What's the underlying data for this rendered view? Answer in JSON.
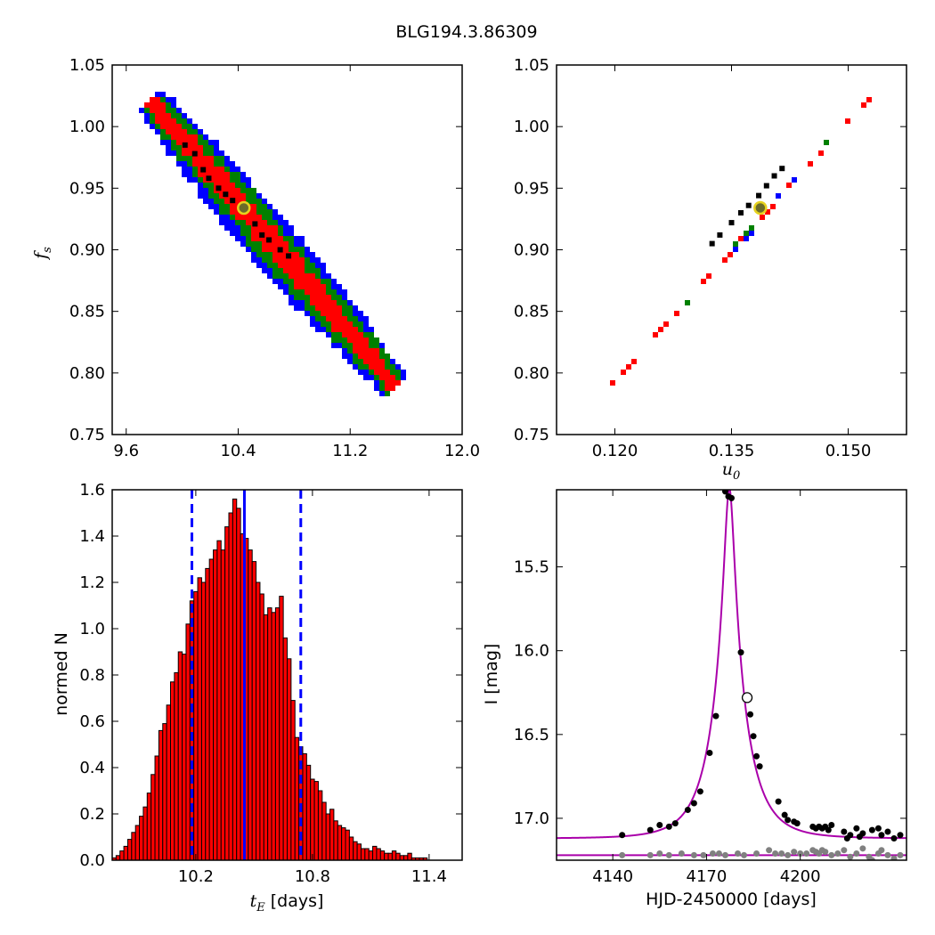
{
  "suptitle": "BLG194.3.86309",
  "chart_data": [
    {
      "type": "heatmap",
      "panel": "top-left",
      "xlabel": "",
      "ylabel": "f_s",
      "ylabel_main": "f",
      "ylabel_sub": "s",
      "xlim": [
        9.5,
        12.0
      ],
      "ylim": [
        0.75,
        1.05
      ],
      "xticks": [
        "9.6",
        "10.4",
        "11.2",
        "12.0"
      ],
      "xtick_values": [
        9.6,
        10.4,
        11.2,
        12.0
      ],
      "yticks": [
        "0.75",
        "0.80",
        "0.85",
        "0.90",
        "0.95",
        "1.00",
        "1.05"
      ],
      "ytick_values": [
        0.75,
        0.8,
        0.85,
        0.9,
        0.95,
        1.0,
        1.05
      ],
      "band": {
        "p0": [
          9.78,
          1.02
        ],
        "p1": [
          11.52,
          0.79
        ],
        "widths": {
          "blue": 0.041,
          "green": 0.03,
          "red": 0.017
        }
      },
      "colors": {
        "blue": "#0000ff",
        "green": "#008000",
        "red": "#ff0000",
        "black": "#000000"
      },
      "best_fit": {
        "x": 10.44,
        "y": 0.934
      },
      "black_points": [
        [
          10.02,
          0.985
        ],
        [
          10.09,
          0.978
        ],
        [
          10.15,
          0.965
        ],
        [
          10.19,
          0.958
        ],
        [
          10.26,
          0.95
        ],
        [
          10.31,
          0.945
        ],
        [
          10.36,
          0.94
        ],
        [
          10.43,
          0.933
        ],
        [
          10.52,
          0.921
        ],
        [
          10.57,
          0.912
        ],
        [
          10.62,
          0.908
        ],
        [
          10.7,
          0.9
        ],
        [
          10.76,
          0.895
        ]
      ]
    },
    {
      "type": "heatmap",
      "panel": "top-right",
      "xlabel": "u_0",
      "xlabel_main": "u",
      "xlabel_sub": "0",
      "ylabel": "",
      "xlim": [
        0.1125,
        0.1575
      ],
      "ylim": [
        0.75,
        1.05
      ],
      "xticks": [
        "0.120",
        "0.135",
        "0.150"
      ],
      "xtick_values": [
        0.12,
        0.135,
        0.15
      ],
      "yticks": [
        "0.75",
        "0.80",
        "0.85",
        "0.90",
        "0.95",
        "1.00",
        "1.05"
      ],
      "ytick_values": [
        0.75,
        0.8,
        0.85,
        0.9,
        0.95,
        1.0,
        1.05
      ],
      "band": {
        "p0": [
          0.1195,
          0.79
        ],
        "p1": [
          0.1525,
          1.022
        ],
        "widths": {
          "blue": 0.0019,
          "green": 0.0013,
          "red": 0.0007
        }
      },
      "colors": {
        "blue": "#0000ff",
        "green": "#008000",
        "red": "#ff0000",
        "black": "#000000"
      },
      "best_fit": {
        "x": 0.1387,
        "y": 0.934
      },
      "black_points": [
        [
          0.1325,
          0.905
        ],
        [
          0.1335,
          0.912
        ],
        [
          0.135,
          0.922
        ],
        [
          0.1362,
          0.93
        ],
        [
          0.1372,
          0.936
        ],
        [
          0.1385,
          0.944
        ],
        [
          0.1395,
          0.952
        ],
        [
          0.1405,
          0.96
        ],
        [
          0.1415,
          0.966
        ]
      ]
    },
    {
      "type": "bar",
      "panel": "bottom-left",
      "xlabel_main": "t",
      "xlabel_sub": "E",
      "xlabel_rest": " [days]",
      "ylabel": "normed N",
      "xlim": [
        9.77,
        11.57
      ],
      "ylim": [
        0.0,
        1.6
      ],
      "xticks": [
        "10.2",
        "10.8",
        "11.4"
      ],
      "xtick_values": [
        10.2,
        10.8,
        11.4
      ],
      "yticks": [
        "0.0",
        "0.2",
        "0.4",
        "0.6",
        "0.8",
        "1.0",
        "1.2",
        "1.4",
        "1.6"
      ],
      "ytick_values": [
        0.0,
        0.2,
        0.4,
        0.6,
        0.8,
        1.0,
        1.2,
        1.4,
        1.6
      ],
      "bin_start": 9.77,
      "bin_width": 0.02,
      "values": [
        0.01,
        0.02,
        0.04,
        0.06,
        0.09,
        0.12,
        0.15,
        0.19,
        0.23,
        0.29,
        0.37,
        0.45,
        0.56,
        0.59,
        0.67,
        0.77,
        0.81,
        0.9,
        0.89,
        1.02,
        1.12,
        1.16,
        1.22,
        1.2,
        1.26,
        1.3,
        1.34,
        1.38,
        1.34,
        1.44,
        1.5,
        1.56,
        1.52,
        1.41,
        1.39,
        1.34,
        1.29,
        1.2,
        1.15,
        1.06,
        1.09,
        1.07,
        1.09,
        1.14,
        0.96,
        0.87,
        0.69,
        0.53,
        0.49,
        0.46,
        0.41,
        0.35,
        0.34,
        0.3,
        0.25,
        0.2,
        0.22,
        0.17,
        0.15,
        0.14,
        0.13,
        0.1,
        0.08,
        0.07,
        0.05,
        0.05,
        0.04,
        0.06,
        0.05,
        0.04,
        0.03,
        0.03,
        0.04,
        0.03,
        0.02,
        0.02,
        0.03,
        0.01,
        0.01,
        0.01,
        0.01
      ],
      "bar_color": "#ff0000",
      "median": 10.45,
      "bounds": [
        10.18,
        10.74
      ],
      "line_color": "#0000ff"
    },
    {
      "type": "scatter",
      "panel": "bottom-right",
      "xlabel": "HJD-2450000 [days]",
      "ylabel": "I [mag]",
      "xlim": [
        4122,
        4234
      ],
      "ylim": [
        17.25,
        15.04
      ],
      "y_inverted": true,
      "xticks": [
        "4140",
        "4170",
        "4200"
      ],
      "xtick_values": [
        4140,
        4170,
        4200
      ],
      "yticks": [
        "15.5",
        "16.0",
        "16.5",
        "17.0"
      ],
      "ytick_values": [
        15.5,
        16.0,
        16.5,
        17.0
      ],
      "model": {
        "t0": 4177.3,
        "tE": 10.45,
        "u0": 0.1387,
        "fs": 0.934,
        "base": 17.12,
        "color": "#aa00aa",
        "baseline_mag": 17.22
      },
      "series": [
        {
          "name": "",
          "color": "#000000",
          "points": [
            [
              4143,
              17.1
            ],
            [
              4152,
              17.07
            ],
            [
              4155,
              17.04
            ],
            [
              4158,
              17.05
            ],
            [
              4160,
              17.03
            ],
            [
              4164,
              16.95
            ],
            [
              4166,
              16.91
            ],
            [
              4168,
              16.84
            ],
            [
              4171,
              16.61
            ],
            [
              4173,
              16.39
            ],
            [
              4176,
              15.05
            ],
            [
              4177,
              15.08
            ],
            [
              4178,
              15.09
            ],
            [
              4181,
              16.01
            ],
            [
              4184,
              16.38
            ],
            [
              4185,
              16.51
            ],
            [
              4186,
              16.63
            ],
            [
              4187,
              16.69
            ],
            [
              4193,
              16.9
            ],
            [
              4195,
              16.98
            ],
            [
              4196,
              17.01
            ],
            [
              4198,
              17.02
            ],
            [
              4199,
              17.03
            ],
            [
              4204,
              17.05
            ],
            [
              4205,
              17.06
            ],
            [
              4206,
              17.05
            ],
            [
              4207,
              17.06
            ],
            [
              4208,
              17.05
            ],
            [
              4209,
              17.07
            ],
            [
              4210,
              17.04
            ],
            [
              4214,
              17.08
            ],
            [
              4215,
              17.12
            ],
            [
              4216,
              17.1
            ],
            [
              4218,
              17.06
            ],
            [
              4219,
              17.11
            ],
            [
              4220,
              17.09
            ],
            [
              4223,
              17.07
            ],
            [
              4225,
              17.06
            ],
            [
              4226,
              17.1
            ],
            [
              4228,
              17.08
            ],
            [
              4230,
              17.12
            ],
            [
              4232,
              17.1
            ]
          ]
        },
        {
          "name": "",
          "color": "#808080",
          "points": [
            [
              4143,
              17.22
            ],
            [
              4152,
              17.22
            ],
            [
              4155,
              17.21
            ],
            [
              4158,
              17.22
            ],
            [
              4162,
              17.21
            ],
            [
              4166,
              17.22
            ],
            [
              4169,
              17.22
            ],
            [
              4172,
              17.21
            ],
            [
              4174,
              17.21
            ],
            [
              4176,
              17.22
            ],
            [
              4180,
              17.21
            ],
            [
              4182,
              17.22
            ],
            [
              4186,
              17.21
            ],
            [
              4190,
              17.19
            ],
            [
              4192,
              17.21
            ],
            [
              4194,
              17.21
            ],
            [
              4196,
              17.22
            ],
            [
              4198,
              17.2
            ],
            [
              4200,
              17.21
            ],
            [
              4202,
              17.21
            ],
            [
              4204,
              17.19
            ],
            [
              4205,
              17.2
            ],
            [
              4206,
              17.21
            ],
            [
              4207,
              17.19
            ],
            [
              4208,
              17.2
            ],
            [
              4210,
              17.22
            ],
            [
              4212,
              17.21
            ],
            [
              4214,
              17.19
            ],
            [
              4216,
              17.23
            ],
            [
              4218,
              17.21
            ],
            [
              4220,
              17.18
            ],
            [
              4222,
              17.23
            ],
            [
              4223,
              17.25
            ],
            [
              4225,
              17.21
            ],
            [
              4226,
              17.19
            ],
            [
              4228,
              17.22
            ],
            [
              4230,
              17.24
            ],
            [
              4232,
              17.22
            ]
          ]
        }
      ]
    }
  ]
}
